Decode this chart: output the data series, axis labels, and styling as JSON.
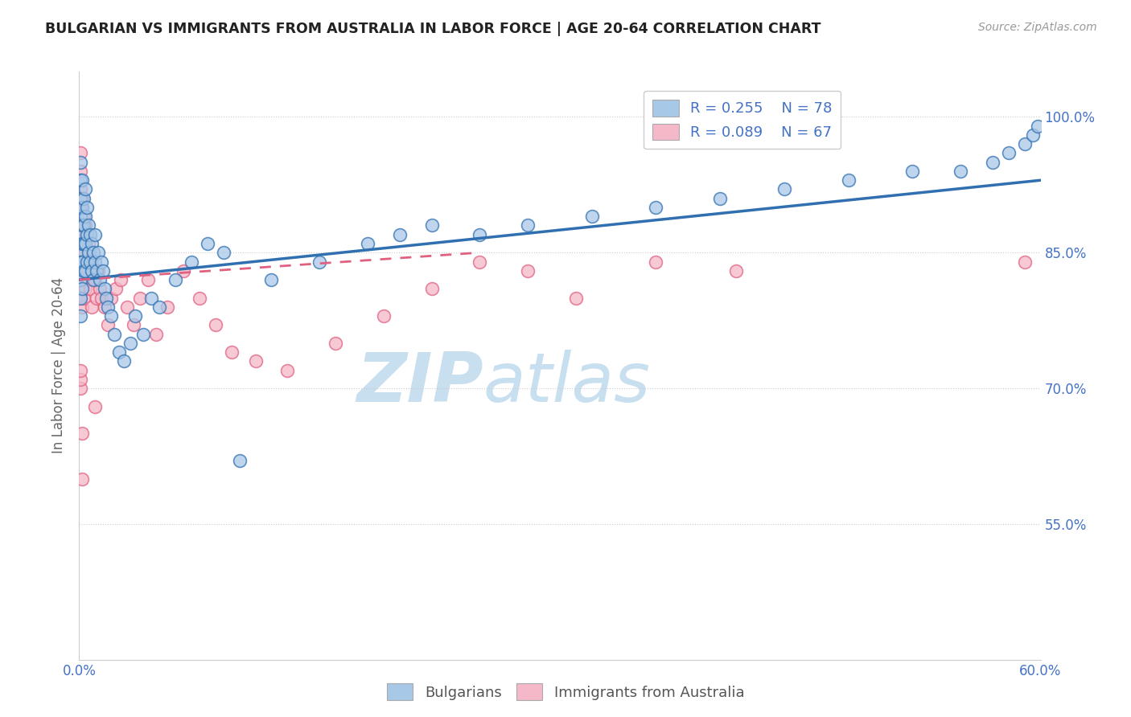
{
  "title": "BULGARIAN VS IMMIGRANTS FROM AUSTRALIA IN LABOR FORCE | AGE 20-64 CORRELATION CHART",
  "source": "Source: ZipAtlas.com",
  "ylabel": "In Labor Force | Age 20-64",
  "xlim": [
    0.0,
    0.6
  ],
  "ylim": [
    0.4,
    1.05
  ],
  "yticks": [
    0.55,
    0.7,
    0.85,
    1.0
  ],
  "ytick_labels": [
    "55.0%",
    "70.0%",
    "85.0%",
    "100.0%"
  ],
  "xticks": [
    0.0,
    0.15,
    0.3,
    0.45,
    0.6
  ],
  "xtick_labels": [
    "0.0%",
    "",
    "",
    "",
    "60.0%"
  ],
  "blue_color": "#a8c8e8",
  "pink_color": "#f4b8c8",
  "blue_line_color": "#3070b0",
  "pink_line_color": "#e06080",
  "axis_label_color": "#666666",
  "tick_color": "#4472c4",
  "watermark_color": "#ddeeff",
  "grid_color": "#cccccc",
  "bulgarians_x": [
    0.001,
    0.001,
    0.001,
    0.001,
    0.001,
    0.001,
    0.001,
    0.001,
    0.001,
    0.001,
    0.002,
    0.002,
    0.002,
    0.002,
    0.002,
    0.002,
    0.003,
    0.003,
    0.003,
    0.003,
    0.004,
    0.004,
    0.004,
    0.004,
    0.005,
    0.005,
    0.005,
    0.006,
    0.006,
    0.007,
    0.007,
    0.008,
    0.008,
    0.009,
    0.009,
    0.01,
    0.01,
    0.011,
    0.012,
    0.013,
    0.014,
    0.015,
    0.016,
    0.017,
    0.018,
    0.02,
    0.022,
    0.025,
    0.028,
    0.032,
    0.035,
    0.04,
    0.045,
    0.05,
    0.06,
    0.07,
    0.08,
    0.09,
    0.1,
    0.12,
    0.15,
    0.18,
    0.2,
    0.22,
    0.25,
    0.28,
    0.32,
    0.36,
    0.4,
    0.44,
    0.48,
    0.52,
    0.55,
    0.57,
    0.58,
    0.59,
    0.595,
    0.598
  ],
  "bulgarians_y": [
    0.95,
    0.93,
    0.91,
    0.89,
    0.87,
    0.85,
    0.84,
    0.82,
    0.8,
    0.78,
    0.93,
    0.9,
    0.88,
    0.86,
    0.84,
    0.81,
    0.91,
    0.88,
    0.86,
    0.83,
    0.92,
    0.89,
    0.86,
    0.83,
    0.9,
    0.87,
    0.84,
    0.88,
    0.85,
    0.87,
    0.84,
    0.86,
    0.83,
    0.85,
    0.82,
    0.87,
    0.84,
    0.83,
    0.85,
    0.82,
    0.84,
    0.83,
    0.81,
    0.8,
    0.79,
    0.78,
    0.76,
    0.74,
    0.73,
    0.75,
    0.78,
    0.76,
    0.8,
    0.79,
    0.82,
    0.84,
    0.86,
    0.85,
    0.62,
    0.82,
    0.84,
    0.86,
    0.87,
    0.88,
    0.87,
    0.88,
    0.89,
    0.9,
    0.91,
    0.92,
    0.93,
    0.94,
    0.94,
    0.95,
    0.96,
    0.97,
    0.98,
    0.99
  ],
  "australia_x": [
    0.001,
    0.001,
    0.001,
    0.001,
    0.001,
    0.001,
    0.001,
    0.001,
    0.001,
    0.002,
    0.002,
    0.002,
    0.002,
    0.002,
    0.003,
    0.003,
    0.003,
    0.003,
    0.004,
    0.004,
    0.004,
    0.005,
    0.005,
    0.006,
    0.006,
    0.007,
    0.007,
    0.008,
    0.008,
    0.009,
    0.01,
    0.011,
    0.012,
    0.013,
    0.014,
    0.016,
    0.018,
    0.02,
    0.023,
    0.026,
    0.03,
    0.034,
    0.038,
    0.043,
    0.048,
    0.055,
    0.065,
    0.075,
    0.085,
    0.095,
    0.11,
    0.13,
    0.16,
    0.19,
    0.22,
    0.25,
    0.28,
    0.31,
    0.36,
    0.41,
    0.01,
    0.002,
    0.001,
    0.001,
    0.001,
    0.002,
    0.59
  ],
  "australia_y": [
    0.96,
    0.94,
    0.92,
    0.9,
    0.88,
    0.86,
    0.84,
    0.82,
    0.8,
    0.91,
    0.88,
    0.86,
    0.83,
    0.79,
    0.89,
    0.87,
    0.84,
    0.8,
    0.88,
    0.85,
    0.81,
    0.87,
    0.83,
    0.86,
    0.82,
    0.85,
    0.81,
    0.84,
    0.79,
    0.83,
    0.82,
    0.8,
    0.83,
    0.81,
    0.8,
    0.79,
    0.77,
    0.8,
    0.81,
    0.82,
    0.79,
    0.77,
    0.8,
    0.82,
    0.76,
    0.79,
    0.83,
    0.8,
    0.77,
    0.74,
    0.73,
    0.72,
    0.75,
    0.78,
    0.81,
    0.84,
    0.83,
    0.8,
    0.84,
    0.83,
    0.68,
    0.65,
    0.7,
    0.71,
    0.72,
    0.6,
    0.84
  ]
}
